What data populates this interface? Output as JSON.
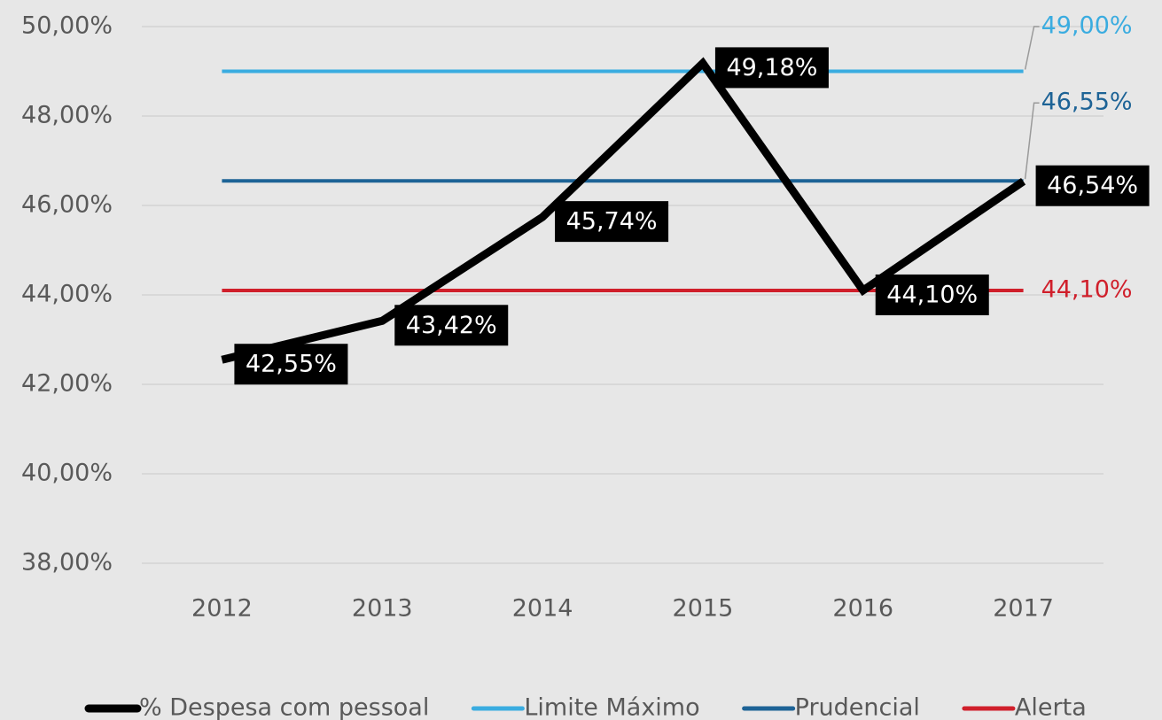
{
  "chart_data": {
    "type": "line",
    "categories": [
      "2012",
      "2013",
      "2014",
      "2015",
      "2016",
      "2017"
    ],
    "series": [
      {
        "name": "% Despesa com pessoal",
        "color": "#000000",
        "values": [
          42.55,
          43.42,
          45.74,
          49.18,
          44.1,
          46.54
        ],
        "value_labels": [
          "42,55%",
          "43,42%",
          "45,74%",
          "49,18%",
          "44,10%",
          "46,54%"
        ]
      },
      {
        "name": "Limite Máximo",
        "color": "#3aace0",
        "values": [
          49,
          49,
          49,
          49,
          49,
          49
        ],
        "value_labels": [
          null,
          null,
          null,
          null,
          null,
          "49,00%"
        ]
      },
      {
        "name": "Prudencial",
        "color": "#1d6396",
        "values": [
          46.55,
          46.55,
          46.55,
          46.55,
          46.55,
          46.55
        ],
        "value_labels": [
          null,
          null,
          null,
          null,
          null,
          "46,55%"
        ]
      },
      {
        "name": "Alerta",
        "color": "#d01f2b",
        "values": [
          44.1,
          44.1,
          44.1,
          44.1,
          44.1,
          44.1
        ],
        "value_labels": [
          null,
          null,
          null,
          null,
          null,
          "44,10%"
        ]
      }
    ],
    "ylim": [
      38,
      50
    ],
    "yticks": [
      {
        "value": 38,
        "label": "38,00%"
      },
      {
        "value": 40,
        "label": "40,00%"
      },
      {
        "value": 42,
        "label": "42,00%"
      },
      {
        "value": 44,
        "label": "44,00%"
      },
      {
        "value": 46,
        "label": "46,00%"
      },
      {
        "value": 48,
        "label": "48,00%"
      },
      {
        "value": 50,
        "label": "50,00%"
      }
    ],
    "grid": true,
    "legend": "bottom"
  }
}
